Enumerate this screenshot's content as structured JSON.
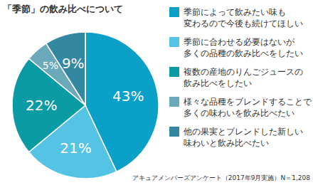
{
  "chart_data": {
    "type": "pie",
    "title": "「季節」の飲み比べについて",
    "categories": [
      "季節によって飲みたい味も\n変わるので今後も続けてほしい",
      "季節に合わせる必要はないが\n多くの品種の飲み比べをしたい",
      "複数の産地のりんごジュースの\n飲み比べをしたい",
      "様々な品種をブレンドすることで\n多くの味わいを飲み比べたい",
      "他の果実とブレンドした新しい\n味わいと飲み比べたい"
    ],
    "values": [
      43,
      21,
      22,
      5,
      9
    ],
    "value_labels": [
      "43%",
      "21%",
      "22%",
      "5%",
      "9%"
    ],
    "colors": [
      "#0ba0c8",
      "#55c3e3",
      "#0a9ba5",
      "#6aa9b9",
      "#3487a0"
    ],
    "data_labels": true,
    "legend": "right",
    "annotations": [
      "アキュアメンバーズアンケート（2017年9月実施）N＝1,208"
    ]
  }
}
